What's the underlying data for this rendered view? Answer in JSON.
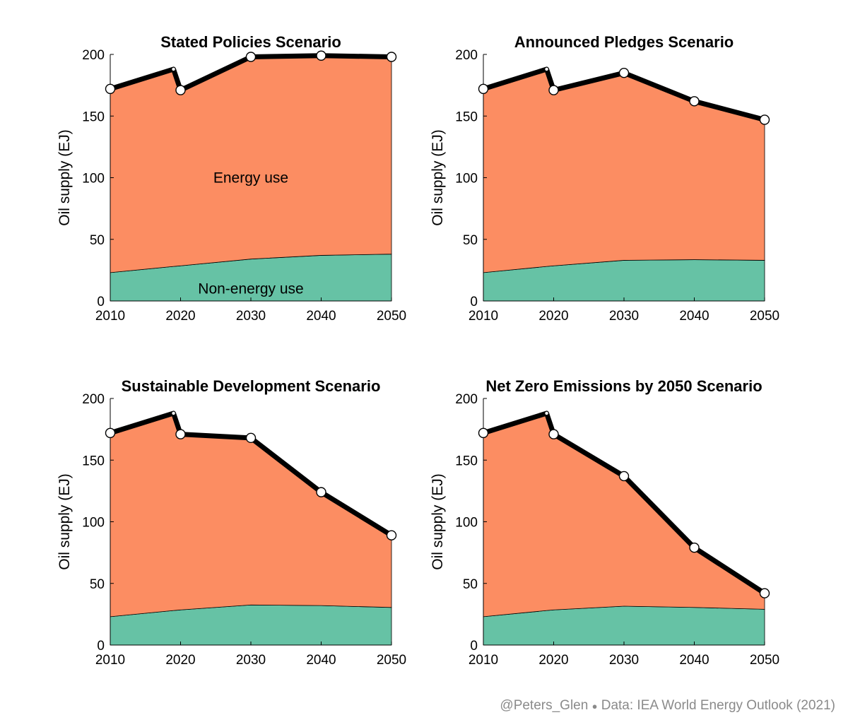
{
  "colors": {
    "energy": "#fc8d62",
    "non_energy": "#66c2a5",
    "total_line": "#000000",
    "marker_fill": "#ffffff",
    "credit_text": "#8a8a8a"
  },
  "credit": {
    "handle": "@Peters_Glen",
    "separator": "●",
    "source": "Data: IEA World Energy Outlook (2021)"
  },
  "chart_data": [
    {
      "type": "area",
      "title": "Stated Policies Scenario",
      "ylabel": "Oil supply (EJ)",
      "xlabel": "",
      "xlim": [
        2010,
        2050
      ],
      "ylim": [
        0,
        200
      ],
      "xticks": [
        "2010",
        "2020",
        "2030",
        "2040",
        "2050"
      ],
      "yticks": [
        "0",
        "50",
        "100",
        "150",
        "200"
      ],
      "x": [
        2010,
        2019,
        2020,
        2030,
        2040,
        2050
      ],
      "series": [
        {
          "name": "Non-energy use",
          "values": [
            23,
            28,
            28.5,
            34,
            37,
            38
          ]
        },
        {
          "name": "Energy use",
          "values": [
            149,
            160,
            142.5,
            164,
            162,
            160
          ]
        }
      ],
      "total": [
        172,
        188,
        171,
        198,
        199,
        198
      ],
      "markers_x": [
        2010,
        2020,
        2030,
        2040,
        2050
      ],
      "annotations": [
        {
          "text": "Energy use",
          "x": 2030,
          "y": 100
        },
        {
          "text": "Non-energy use",
          "x": 2030,
          "y": 10
        }
      ]
    },
    {
      "type": "area",
      "title": "Announced Pledges Scenario",
      "ylabel": "Oil supply (EJ)",
      "xlabel": "",
      "xlim": [
        2010,
        2050
      ],
      "ylim": [
        0,
        200
      ],
      "xticks": [
        "2010",
        "2020",
        "2030",
        "2040",
        "2050"
      ],
      "yticks": [
        "0",
        "50",
        "100",
        "150",
        "200"
      ],
      "x": [
        2010,
        2019,
        2020,
        2030,
        2040,
        2050
      ],
      "series": [
        {
          "name": "Non-energy use",
          "values": [
            23,
            28,
            28.5,
            33,
            33.5,
            33
          ]
        },
        {
          "name": "Energy use",
          "values": [
            149,
            160,
            142.5,
            152,
            128.5,
            114
          ]
        }
      ],
      "total": [
        172,
        188,
        171,
        185,
        162,
        147
      ],
      "markers_x": [
        2010,
        2020,
        2030,
        2040,
        2050
      ],
      "annotations": []
    },
    {
      "type": "area",
      "title": "Sustainable Development Scenario",
      "ylabel": "Oil supply (EJ)",
      "xlabel": "",
      "xlim": [
        2010,
        2050
      ],
      "ylim": [
        0,
        200
      ],
      "xticks": [
        "2010",
        "2020",
        "2030",
        "2040",
        "2050"
      ],
      "yticks": [
        "0",
        "50",
        "100",
        "150",
        "200"
      ],
      "x": [
        2010,
        2019,
        2020,
        2030,
        2040,
        2050
      ],
      "series": [
        {
          "name": "Non-energy use",
          "values": [
            23,
            28,
            28.5,
            32.5,
            32,
            30.5
          ]
        },
        {
          "name": "Energy use",
          "values": [
            149,
            160,
            142.5,
            135.5,
            92,
            58.5
          ]
        }
      ],
      "total": [
        172,
        188,
        171,
        168,
        124,
        89
      ],
      "markers_x": [
        2010,
        2020,
        2030,
        2040,
        2050
      ],
      "annotations": []
    },
    {
      "type": "area",
      "title": "Net Zero Emissions by 2050 Scenario",
      "ylabel": "Oil supply (EJ)",
      "xlabel": "",
      "xlim": [
        2010,
        2050
      ],
      "ylim": [
        0,
        200
      ],
      "xticks": [
        "2010",
        "2020",
        "2030",
        "2040",
        "2050"
      ],
      "yticks": [
        "0",
        "50",
        "100",
        "150",
        "200"
      ],
      "x": [
        2010,
        2019,
        2020,
        2030,
        2040,
        2050
      ],
      "series": [
        {
          "name": "Non-energy use",
          "values": [
            23,
            28,
            28.5,
            31.5,
            30.5,
            29
          ]
        },
        {
          "name": "Energy use",
          "values": [
            149,
            160,
            142.5,
            105.5,
            48.5,
            13
          ]
        }
      ],
      "total": [
        172,
        188,
        171,
        137,
        79,
        42
      ],
      "markers_x": [
        2010,
        2020,
        2030,
        2040,
        2050
      ],
      "annotations": []
    }
  ]
}
